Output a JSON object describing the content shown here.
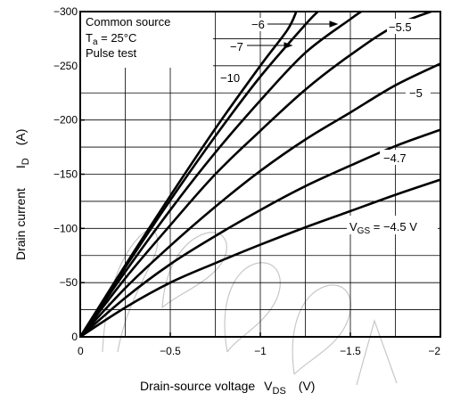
{
  "chart_data": {
    "type": "line",
    "xlabel": "Drain-source voltage",
    "xlabel_symbol": "V",
    "xlabel_sub": "DS",
    "xlabel_unit": "(V)",
    "ylabel": "Drain current",
    "ylabel_symbol": "I",
    "ylabel_sub": "D",
    "ylabel_unit": "(A)",
    "xlim": [
      0,
      -2
    ],
    "ylim": [
      0,
      -300
    ],
    "grid": true,
    "x_ticks": [
      0,
      -0.5,
      -1,
      -1.5,
      -2
    ],
    "x_tick_labels": [
      "0",
      "−0.5",
      "−1",
      "−1.5",
      "−2"
    ],
    "y_ticks": [
      0,
      -50,
      -100,
      -150,
      -200,
      -250,
      -300
    ],
    "y_tick_labels": [
      "0",
      "−50",
      "−100",
      "−150",
      "−200",
      "−250",
      "−300"
    ],
    "conditions": {
      "line1": "Common source",
      "line2_symbol": "T",
      "line2_sub": "a",
      "line2_rest": " = 25°C",
      "line3": "Pulse test"
    },
    "vgs_prefix": "V",
    "vgs_sub": "GS",
    "series": [
      {
        "name": "−10",
        "x": [
          0,
          -0.25,
          -0.5,
          -0.75,
          -1.0,
          -1.15,
          -1.2
        ],
        "y": [
          0,
          -66,
          -130,
          -192,
          -250,
          -283,
          -300
        ]
      },
      {
        "name": "−7",
        "x": [
          0,
          -0.25,
          -0.5,
          -0.75,
          -1.0,
          -1.25,
          -1.32
        ],
        "y": [
          0,
          -64,
          -126,
          -185,
          -240,
          -288,
          -300
        ]
      },
      {
        "name": "−6",
        "x": [
          0,
          -0.25,
          -0.5,
          -0.75,
          -1.0,
          -1.25,
          -1.5,
          -1.56
        ],
        "y": [
          0,
          -60,
          -117,
          -170,
          -218,
          -262,
          -293,
          -300
        ]
      },
      {
        "name": "−5.5",
        "x": [
          0,
          -0.25,
          -0.5,
          -0.75,
          -1.0,
          -1.25,
          -1.5,
          -1.75,
          -2.0
        ],
        "y": [
          0,
          -54,
          -103,
          -150,
          -190,
          -228,
          -260,
          -287,
          -303
        ]
      },
      {
        "name": "−5",
        "x": [
          0,
          -0.25,
          -0.5,
          -0.75,
          -1.0,
          -1.25,
          -1.5,
          -1.75,
          -2.0
        ],
        "y": [
          0,
          -45,
          -84,
          -120,
          -153,
          -182,
          -207,
          -232,
          -252
        ]
      },
      {
        "name": "−4.7",
        "x": [
          0,
          -0.25,
          -0.5,
          -0.75,
          -1.0,
          -1.25,
          -1.5,
          -1.75,
          -2.0
        ],
        "y": [
          0,
          -36,
          -67,
          -93,
          -117,
          -139,
          -158,
          -176,
          -191
        ]
      },
      {
        "name": "−4.5 V",
        "x": [
          0,
          -0.25,
          -0.5,
          -0.75,
          -1.0,
          -1.25,
          -1.5,
          -1.75,
          -2.0
        ],
        "y": [
          0,
          -27,
          -50,
          -68,
          -85,
          -101,
          -116,
          -131,
          -145
        ]
      }
    ]
  }
}
